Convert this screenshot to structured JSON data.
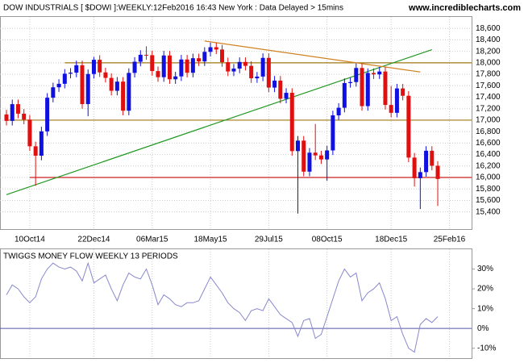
{
  "chart_data": [
    {
      "type": "candlestick",
      "title": "DOW INDUSTRIALS [ $DOWI ]:WEEKLY:12Feb2016 16:43 New York : Data Delayed > 15mins",
      "source": "www.incrediblecharts.com",
      "categories": [
        null,
        null,
        null,
        null,
        "10Oct14",
        null,
        null,
        null,
        null,
        null,
        null,
        null,
        null,
        null,
        null,
        "22Dec14",
        null,
        null,
        null,
        null,
        null,
        null,
        null,
        null,
        null,
        "06Mar15",
        null,
        null,
        null,
        null,
        null,
        null,
        null,
        null,
        null,
        "18May15",
        null,
        null,
        null,
        null,
        null,
        null,
        null,
        null,
        null,
        "29Jul15",
        null,
        null,
        null,
        null,
        null,
        null,
        null,
        null,
        null,
        "08Oct15",
        null,
        null,
        null,
        null,
        null,
        null,
        null,
        null,
        null,
        null,
        "18Dec15",
        null,
        null,
        null,
        null,
        null,
        null,
        null,
        null,
        null,
        "25Feb16",
        null,
        null,
        null
      ],
      "open": [
        17100,
        16987,
        17279,
        17113,
        17009,
        16544,
        16380,
        16805,
        17391,
        17573,
        17634,
        17810,
        17828,
        17958,
        17280,
        17805,
        18053,
        17833,
        17737,
        17512,
        17672,
        17165,
        17824,
        18019,
        18140,
        18133,
        17856,
        17749,
        18128,
        17713,
        17763,
        18058,
        17826,
        18080,
        18024,
        18191,
        18272,
        18232,
        18011,
        17849,
        17899,
        18015,
        17947,
        17730,
        17760,
        18086,
        17568,
        17690,
        17373,
        17477,
        16460,
        16643,
        16102,
        16433,
        16385,
        16315,
        16472,
        17084,
        17216,
        17647,
        17664,
        17910,
        17245,
        17823,
        17798,
        17848,
        17265,
        17128,
        17553,
        17425,
        16347,
        15988,
        16094,
        16466,
        16205,
        null,
        null,
        null,
        null,
        null
      ],
      "high": [
        17180,
        17359,
        17359,
        17193,
        17089,
        16624,
        16885,
        17471,
        17653,
        17714,
        17890,
        17908,
        18038,
        18038,
        17885,
        18103,
        18133,
        17913,
        17817,
        17752,
        17752,
        17904,
        18099,
        18220,
        18288,
        18213,
        17936,
        18208,
        18208,
        17843,
        18138,
        18138,
        18160,
        18160,
        18271,
        18352,
        18352,
        18312,
        18091,
        17979,
        18095,
        18095,
        18027,
        17840,
        18166,
        18166,
        17770,
        17770,
        17557,
        17557,
        16723,
        16723,
        16513,
        16933,
        16465,
        16552,
        17164,
        17296,
        17727,
        17744,
        17990,
        17990,
        17903,
        17903,
        17928,
        17928,
        17595,
        17633,
        17633,
        17505,
        16427,
        16174,
        16546,
        16546,
        16285,
        null,
        null,
        null,
        null,
        null
      ],
      "low": [
        16907,
        16907,
        17033,
        16929,
        16464,
        15855,
        16300,
        16725,
        17311,
        17493,
        17554,
        17730,
        17748,
        17200,
        17068,
        17725,
        17753,
        17657,
        17432,
        17432,
        17085,
        17085,
        17744,
        17939,
        18053,
        17776,
        17669,
        17669,
        17633,
        17633,
        17683,
        17746,
        17746,
        17944,
        17944,
        18111,
        18152,
        17931,
        17769,
        17769,
        17819,
        17867,
        17650,
        17650,
        17680,
        17488,
        17488,
        17293,
        17293,
        16380,
        15370,
        16022,
        16022,
        16305,
        16235,
        15943,
        16392,
        17004,
        17136,
        17567,
        17584,
        17165,
        17165,
        17718,
        17718,
        17185,
        17048,
        17048,
        17345,
        16267,
        15842,
        15450,
        16014,
        16125,
        15503,
        null,
        null,
        null,
        null,
        null
      ],
      "close": [
        16987,
        17279,
        17113,
        17009,
        16544,
        16380,
        16805,
        17391,
        17573,
        17634,
        17810,
        17828,
        17958,
        17280,
        17805,
        18053,
        17833,
        17737,
        17512,
        17672,
        17165,
        17824,
        18019,
        18140,
        18133,
        17856,
        17749,
        18128,
        17713,
        17763,
        18058,
        17826,
        18080,
        18024,
        18191,
        18272,
        18232,
        18011,
        17849,
        17899,
        18015,
        17947,
        17730,
        17760,
        18086,
        17568,
        17690,
        17373,
        17477,
        16460,
        16643,
        16102,
        16433,
        16385,
        16315,
        16472,
        17084,
        17216,
        17647,
        17664,
        17910,
        17245,
        17823,
        17798,
        17848,
        17265,
        17128,
        17553,
        17425,
        16347,
        15988,
        16094,
        16466,
        16205,
        15974,
        null,
        null,
        null,
        null,
        null
      ],
      "up_color": "#1010e0",
      "down_color": "#e01010",
      "ylim": [
        15100,
        18800
      ],
      "yticks": [
        {
          "value": 15400,
          "label": "15,400"
        },
        {
          "value": 15600,
          "label": "15,600"
        },
        {
          "value": 15800,
          "label": "15,800"
        },
        {
          "value": 16000,
          "label": "16,000"
        },
        {
          "value": 16200,
          "label": "16,200"
        },
        {
          "value": 16400,
          "label": "16,400"
        },
        {
          "value": 16600,
          "label": "16,600"
        },
        {
          "value": 16800,
          "label": "16,800"
        },
        {
          "value": 17000,
          "label": "17,000"
        },
        {
          "value": 17200,
          "label": "17,200"
        },
        {
          "value": 17400,
          "label": "17,400"
        },
        {
          "value": 17600,
          "label": "17,600"
        },
        {
          "value": 17800,
          "label": "17,800"
        },
        {
          "value": 18000,
          "label": "18,000"
        },
        {
          "value": 18200,
          "label": "18,200"
        },
        {
          "value": 18400,
          "label": "18,400"
        },
        {
          "value": 18600,
          "label": "18,600"
        }
      ],
      "grid": true,
      "levels": [
        {
          "value": 16000,
          "from": 4,
          "color": "#cc2222"
        },
        {
          "value": 17000,
          "from": 0,
          "color": "#a07810"
        },
        {
          "value": 18000,
          "from": 10,
          "color": "#a07810"
        }
      ],
      "trendlines": [
        {
          "from": 0,
          "start": 15700,
          "to": 73,
          "end": 18230,
          "color": "#229922"
        },
        {
          "from": 34,
          "start": 18380,
          "to": 71,
          "end": 17840,
          "color": "#d08020"
        }
      ]
    },
    {
      "type": "line",
      "title": "TWIGGS MONEY FLOW WEEKLY 13 PERIODS",
      "values": [
        17,
        22,
        20,
        16,
        13,
        16,
        25,
        30,
        33,
        31,
        30,
        31,
        29,
        24,
        33,
        23,
        25,
        27,
        20,
        14,
        22,
        28,
        26,
        25,
        30,
        22,
        12,
        17,
        15,
        12,
        11,
        13,
        13,
        14,
        20,
        26,
        22,
        18,
        13,
        10,
        8,
        4,
        9,
        10,
        9,
        15,
        11,
        7,
        5,
        3,
        -4,
        4,
        5,
        -5,
        -3,
        6,
        15,
        24,
        30,
        26,
        28,
        14,
        18,
        20,
        23,
        15,
        4,
        6,
        -3,
        -10,
        -12,
        2,
        5,
        3,
        6,
        null,
        null,
        null,
        null,
        null
      ],
      "color": "#8888cc",
      "zero_color": "#5555aa",
      "ylim": [
        -15,
        40
      ],
      "yticks": [
        {
          "value": -10,
          "label": "-10%"
        },
        {
          "value": 0,
          "label": "0%"
        },
        {
          "value": 10,
          "label": "10%"
        },
        {
          "value": 20,
          "label": "20%"
        },
        {
          "value": 30,
          "label": "30%"
        }
      ]
    }
  ]
}
